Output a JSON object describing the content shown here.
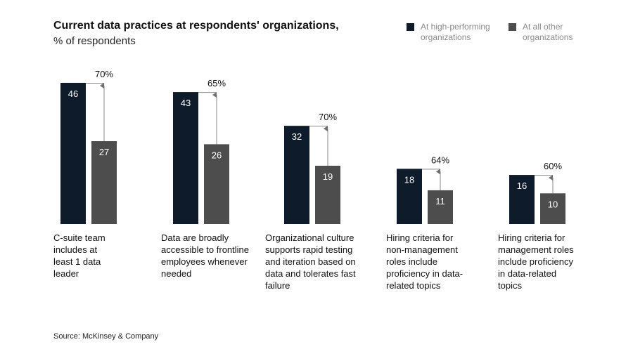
{
  "chart_data": {
    "type": "bar",
    "title": "Current data practices at respondents' organizations,",
    "subtitle": "% of respondents",
    "categories": [
      "C-suite team includes at least 1 data leader",
      "Data are broadly accessible to frontline employees whenever needed",
      "Organizational culture supports rapid testing and iteration based on data and tolerates fast failure",
      "Hiring criteria for non-management roles include proficiency in data-related topics",
      "Hiring criteria for management roles include proficiency in data-related topics"
    ],
    "category_lines": [
      [
        "C-suite team",
        "includes at",
        "least 1 data",
        "leader"
      ],
      [
        "Data are broadly",
        "accessible to frontline",
        "employees whenever",
        "needed"
      ],
      [
        "Organizational culture",
        "supports rapid testing",
        "and iteration based on",
        "data and tolerates fast",
        "failure"
      ],
      [
        "Hiring criteria for",
        "non-management",
        "roles include",
        "proficiency in data-",
        "related topics"
      ],
      [
        "Hiring criteria for",
        "management roles",
        "include proficiency",
        "in data-related",
        "topics"
      ]
    ],
    "series": [
      {
        "name": "At high-performing organizations",
        "values": [
          46,
          43,
          32,
          18,
          16
        ],
        "color": "#0d1b2a"
      },
      {
        "name": "At all other organizations",
        "values": [
          27,
          26,
          19,
          11,
          10
        ],
        "color": "#4d4d4d"
      }
    ],
    "annotations": [
      "70%",
      "65%",
      "70%",
      "64%",
      "60%"
    ],
    "ylim": [
      0,
      50
    ],
    "legend_position": "top-right",
    "grid": false,
    "source": "Source: McKinsey & Company"
  }
}
